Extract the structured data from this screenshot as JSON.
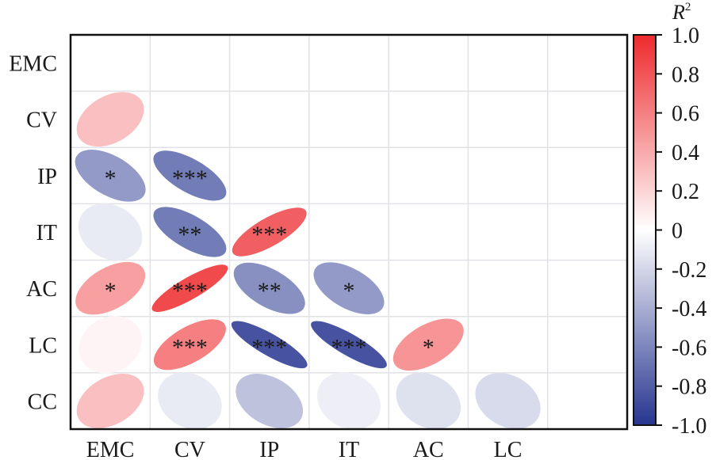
{
  "chart_data": {
    "type": "heatmap",
    "subtype": "correlation-ellipse-lower-triangle",
    "variables_rows": [
      "EMC",
      "CV",
      "IP",
      "IT",
      "AC",
      "LC",
      "CC"
    ],
    "variables_cols": [
      "EMC",
      "CV",
      "IP",
      "IT",
      "AC",
      "LC"
    ],
    "cells": [
      {
        "row": "CV",
        "col": "EMC",
        "value": 0.3,
        "sig": ""
      },
      {
        "row": "IP",
        "col": "EMC",
        "value": -0.5,
        "sig": "*"
      },
      {
        "row": "IP",
        "col": "CV",
        "value": -0.65,
        "sig": "***"
      },
      {
        "row": "IT",
        "col": "EMC",
        "value": -0.1,
        "sig": ""
      },
      {
        "row": "IT",
        "col": "CV",
        "value": -0.65,
        "sig": "**"
      },
      {
        "row": "IT",
        "col": "IP",
        "value": 0.75,
        "sig": "***"
      },
      {
        "row": "AC",
        "col": "EMC",
        "value": 0.45,
        "sig": "*"
      },
      {
        "row": "AC",
        "col": "CV",
        "value": 0.85,
        "sig": "***"
      },
      {
        "row": "AC",
        "col": "IP",
        "value": -0.55,
        "sig": "**"
      },
      {
        "row": "AC",
        "col": "IT",
        "value": -0.5,
        "sig": "*"
      },
      {
        "row": "LC",
        "col": "EMC",
        "value": 0.05,
        "sig": ""
      },
      {
        "row": "LC",
        "col": "CV",
        "value": 0.6,
        "sig": "***"
      },
      {
        "row": "LC",
        "col": "IP",
        "value": -0.85,
        "sig": "***"
      },
      {
        "row": "LC",
        "col": "IT",
        "value": -0.85,
        "sig": "***"
      },
      {
        "row": "LC",
        "col": "AC",
        "value": 0.5,
        "sig": "*"
      },
      {
        "row": "CC",
        "col": "EMC",
        "value": 0.3,
        "sig": ""
      },
      {
        "row": "CC",
        "col": "CV",
        "value": -0.1,
        "sig": ""
      },
      {
        "row": "CC",
        "col": "IP",
        "value": -0.3,
        "sig": ""
      },
      {
        "row": "CC",
        "col": "IT",
        "value": -0.08,
        "sig": ""
      },
      {
        "row": "CC",
        "col": "AC",
        "value": -0.15,
        "sig": ""
      },
      {
        "row": "CC",
        "col": "LC",
        "value": -0.18,
        "sig": ""
      }
    ],
    "colorbar": {
      "title": "R",
      "title_superscript": "2",
      "range": [
        -1.0,
        1.0
      ],
      "ticks": [
        "1.0",
        "0.8",
        "0.6",
        "0.4",
        "0.2",
        "0",
        "-0.2",
        "-0.4",
        "-0.6",
        "-0.8",
        "-1.0"
      ],
      "tick_values": [
        1.0,
        0.8,
        0.6,
        0.4,
        0.2,
        0,
        -0.2,
        -0.4,
        -0.6,
        -0.8,
        -1.0
      ],
      "colors": {
        "low": "#26358f",
        "mid": "#ffffff",
        "high": "#ee2a2d"
      }
    },
    "grid": true,
    "legend": "right"
  }
}
